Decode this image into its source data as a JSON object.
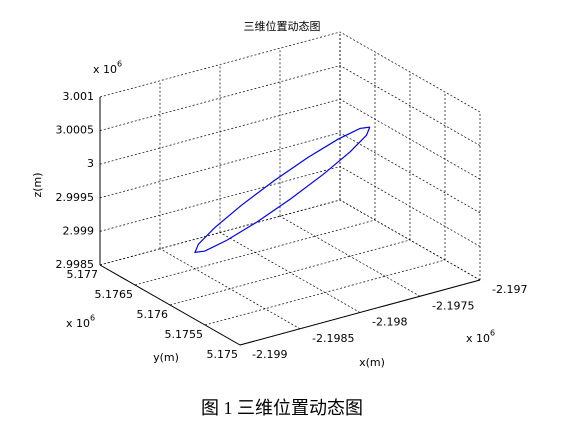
{
  "chart_data": {
    "type": "line3d",
    "title": "三维位置动态图",
    "xlabel": "x(m)",
    "ylabel": "y(m)",
    "zlabel": "z(m)",
    "exponent_base": "x 10",
    "exponent": 6,
    "xlim": [
      -2.199,
      -2.197
    ],
    "xticks": [
      -2.199,
      -2.1985,
      -2.198,
      -2.1975,
      -2.197
    ],
    "ylim": [
      5.175,
      5.177
    ],
    "yticks": [
      5.175,
      5.1755,
      5.176,
      5.1765,
      5.177
    ],
    "zlim": [
      2.9985,
      3.001
    ],
    "zticks": [
      2.9985,
      2.999,
      2.9995,
      3,
      3.0005,
      3.001
    ],
    "grid": true,
    "series": [
      {
        "color": "#0000ff",
        "x": [
          -2.19744,
          -2.197496,
          -2.197657,
          -2.197897,
          -2.19818,
          -2.198463,
          -2.198703,
          -2.198864,
          -2.19892,
          -2.198864,
          -2.198703,
          -2.198463,
          -2.19818,
          -2.197897,
          -2.197657,
          -2.197496,
          -2.19744
        ],
        "y": [
          5.17582,
          5.175772,
          5.175729,
          5.175697,
          5.17568,
          5.175681,
          5.175701,
          5.175736,
          5.17578,
          5.175828,
          5.175871,
          5.175903,
          5.17592,
          5.175919,
          5.175899,
          5.175864,
          5.17582
        ],
        "z": [
          3.0005,
          3.000433,
          3.000291,
          3.000095,
          2.999875,
          2.999664,
          2.999496,
          2.999394,
          2.999375,
          2.999442,
          2.999584,
          2.99978,
          3.0,
          3.000211,
          3.00038,
          3.000481,
          3.0005
        ]
      }
    ]
  },
  "caption": "图 1  三维位置动态图"
}
